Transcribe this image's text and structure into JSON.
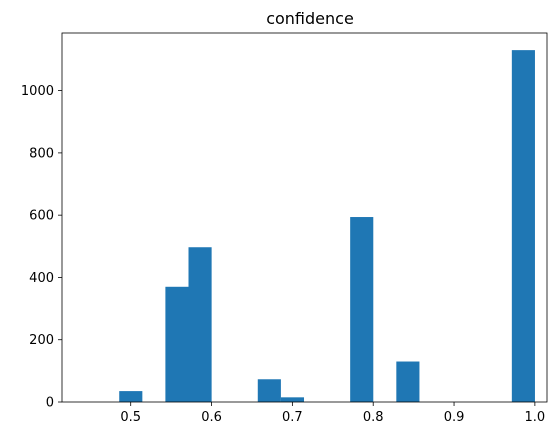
{
  "chart_data": {
    "type": "bar",
    "title": "confidence",
    "xlabel": "",
    "ylabel": "",
    "xlim": [
      0.415,
      1.015
    ],
    "ylim": [
      0,
      1185
    ],
    "x_ticks": [
      "0.5",
      "0.6",
      "0.7",
      "0.8",
      "0.9",
      "1.0"
    ],
    "x_tick_values": [
      0.5,
      0.6,
      0.7,
      0.8,
      0.9,
      1.0
    ],
    "y_ticks": [
      "0",
      "200",
      "400",
      "600",
      "800",
      "1000"
    ],
    "y_tick_values": [
      0,
      200,
      400,
      600,
      800,
      1000
    ],
    "bar_color": "#1f77b4",
    "bar_width": 0.0286,
    "bars": [
      {
        "x": 0.4858,
        "value": 35
      },
      {
        "x": 0.5429,
        "value": 370
      },
      {
        "x": 0.5715,
        "value": 497
      },
      {
        "x": 0.6572,
        "value": 73
      },
      {
        "x": 0.6858,
        "value": 15
      },
      {
        "x": 0.7715,
        "value": 594
      },
      {
        "x": 0.8286,
        "value": 130
      },
      {
        "x": 0.9715,
        "value": 1130
      }
    ]
  }
}
